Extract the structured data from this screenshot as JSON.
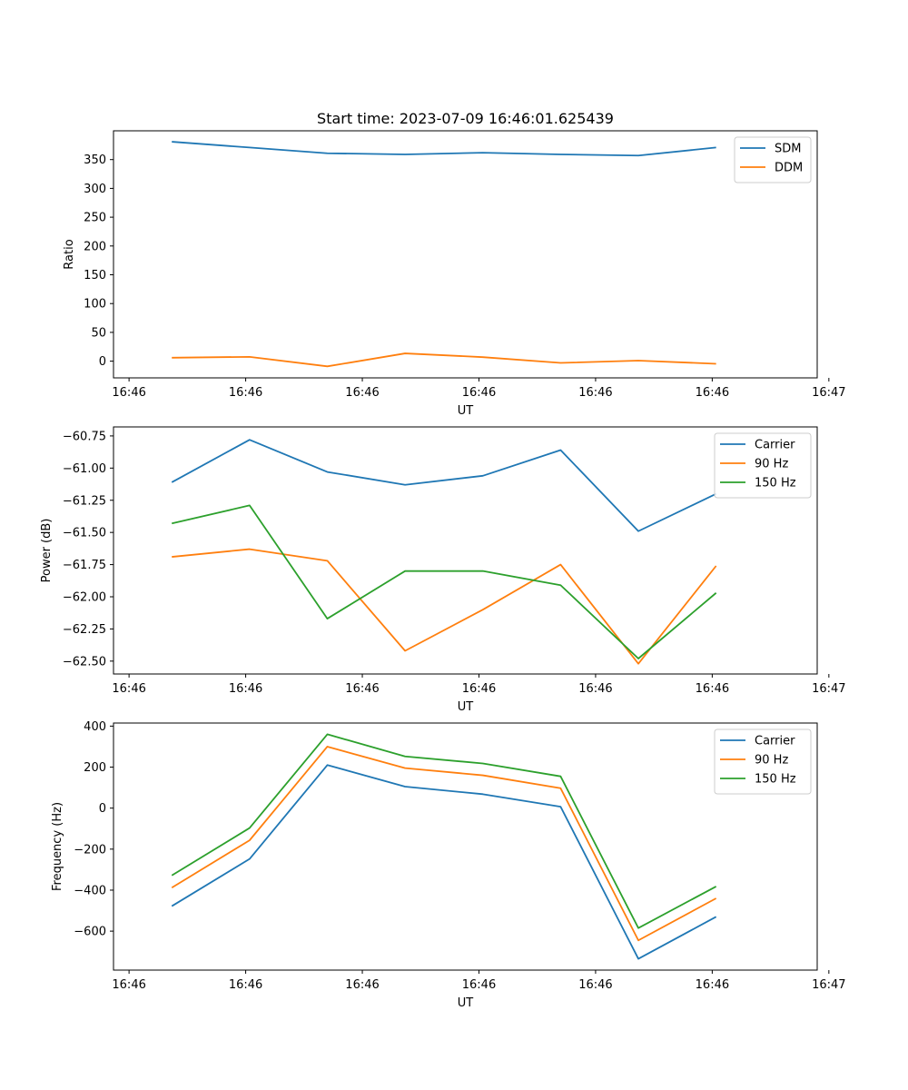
{
  "chart_data": [
    {
      "type": "line",
      "title": "Start time: 2023-07-09 16:46:01.625439",
      "xlabel": "UT",
      "ylabel": "Ratio",
      "x": [
        0,
        1,
        2,
        3,
        4,
        5,
        6,
        7
      ],
      "xlim": [
        -0.75,
        8.3
      ],
      "x_ticks": [
        -0.55,
        0.95,
        2.45,
        3.95,
        5.45,
        6.95,
        8.45
      ],
      "x_tick_labels": [
        "16:46",
        "16:46",
        "16:46",
        "16:46",
        "16:46",
        "16:46",
        "16:47"
      ],
      "ylim": [
        -29,
        400
      ],
      "y_ticks": [
        0,
        50,
        100,
        150,
        200,
        250,
        300,
        350
      ],
      "y_tick_labels": [
        "0",
        "50",
        "100",
        "150",
        "200",
        "250",
        "300",
        "350"
      ],
      "legend": "top-right",
      "series": [
        {
          "name": "SDM",
          "color": "#1f77b4",
          "values": [
            381,
            371,
            361,
            359,
            362,
            359,
            357,
            371
          ]
        },
        {
          "name": "DDM",
          "color": "#ff7f0e",
          "values": [
            6,
            7.5,
            -9,
            13.5,
            7,
            -3,
            1,
            -4.5
          ]
        }
      ]
    },
    {
      "type": "line",
      "title": "",
      "xlabel": "UT",
      "ylabel": "Power (dB)",
      "x": [
        0,
        1,
        2,
        3,
        4,
        5,
        6,
        7
      ],
      "xlim": [
        -0.75,
        8.3
      ],
      "x_ticks": [
        -0.55,
        0.95,
        2.45,
        3.95,
        5.45,
        6.95,
        8.45
      ],
      "x_tick_labels": [
        "16:46",
        "16:46",
        "16:46",
        "16:46",
        "16:46",
        "16:46",
        "16:47"
      ],
      "ylim": [
        -62.6,
        -60.68
      ],
      "y_ticks": [
        -62.5,
        -62.25,
        -62.0,
        -61.75,
        -61.5,
        -61.25,
        -61.0,
        -60.75
      ],
      "y_tick_labels": [
        "−62.50",
        "−62.25",
        "−62.00",
        "−61.75",
        "−61.50",
        "−61.25",
        "−61.00",
        "−60.75"
      ],
      "legend": "top-right",
      "series": [
        {
          "name": "Carrier",
          "color": "#1f77b4",
          "values": [
            -61.11,
            -60.78,
            -61.03,
            -61.13,
            -61.06,
            -60.86,
            -61.49,
            -61.2
          ]
        },
        {
          "name": "90 Hz",
          "color": "#ff7f0e",
          "values": [
            -61.69,
            -61.63,
            -61.72,
            -62.42,
            -62.1,
            -61.75,
            -62.52,
            -61.76
          ]
        },
        {
          "name": "150 Hz",
          "color": "#2ca02c",
          "values": [
            -61.43,
            -61.29,
            -62.17,
            -61.8,
            -61.8,
            -61.91,
            -62.48,
            -61.97
          ]
        }
      ]
    },
    {
      "type": "line",
      "title": "",
      "xlabel": "UT",
      "ylabel": "Frequency (Hz)",
      "x": [
        0,
        1,
        2,
        3,
        4,
        5,
        6,
        7
      ],
      "xlim": [
        -0.75,
        8.3
      ],
      "x_ticks": [
        -0.55,
        0.95,
        2.45,
        3.95,
        5.45,
        6.95,
        8.45
      ],
      "x_tick_labels": [
        "16:46",
        "16:46",
        "16:46",
        "16:46",
        "16:46",
        "16:46",
        "16:47"
      ],
      "ylim": [
        -790,
        415
      ],
      "y_ticks": [
        -600,
        -400,
        -200,
        0,
        200,
        400
      ],
      "y_tick_labels": [
        "−600",
        "−400",
        "−200",
        "0",
        "200",
        "400"
      ],
      "legend": "top-right",
      "series": [
        {
          "name": "Carrier",
          "color": "#1f77b4",
          "values": [
            -478,
            -248,
            210,
            105,
            68,
            7,
            -735,
            -530
          ]
        },
        {
          "name": "90 Hz",
          "color": "#ff7f0e",
          "values": [
            -388,
            -157,
            300,
            195,
            160,
            97,
            -645,
            -440
          ]
        },
        {
          "name": "150 Hz",
          "color": "#2ca02c",
          "values": [
            -328,
            -97,
            360,
            252,
            218,
            155,
            -585,
            -382
          ]
        }
      ]
    }
  ]
}
